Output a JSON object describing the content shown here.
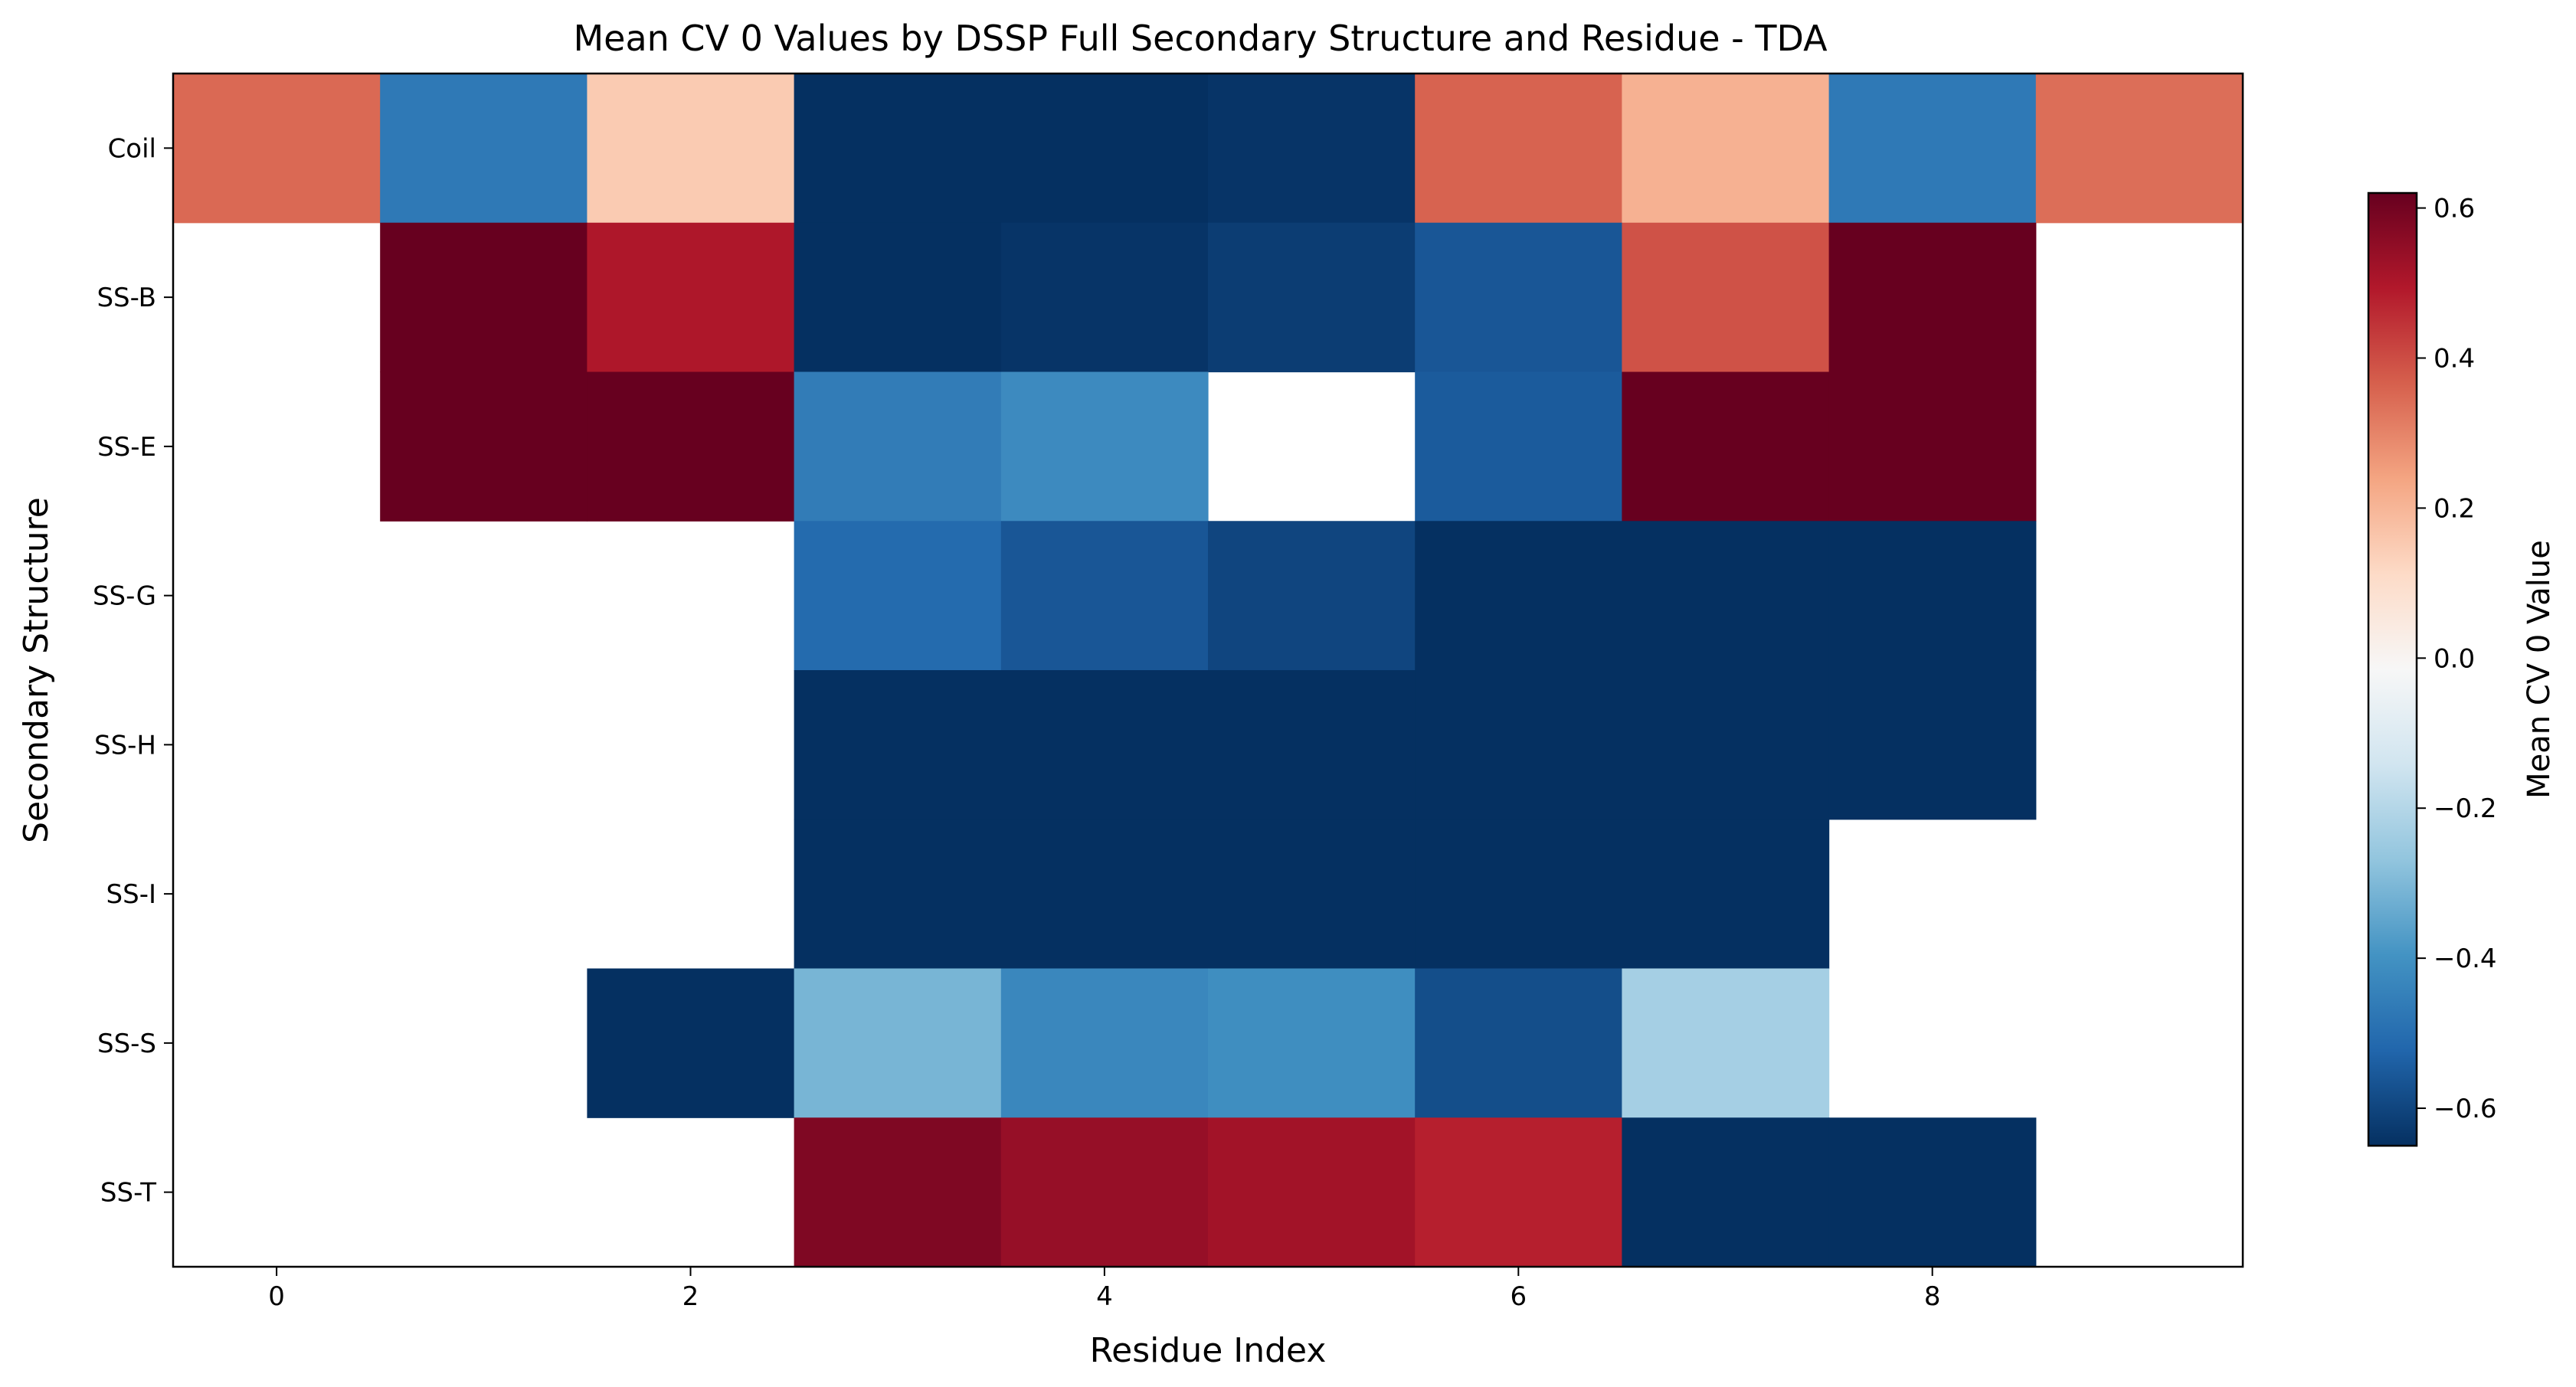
{
  "chart_data": {
    "type": "heatmap",
    "title": "Mean CV 0 Values by DSSP Full Secondary Structure and Residue - TDA",
    "xlabel": "Residue Index",
    "ylabel": "Secondary Structure",
    "colorbar_label": "Mean CV 0 Value",
    "colormap": "RdBu_r",
    "vmin": -0.65,
    "vmax": 0.62,
    "x": [
      0,
      1,
      2,
      3,
      4,
      5,
      6,
      7,
      8,
      9
    ],
    "x_tick_labels": [
      "0",
      "2",
      "4",
      "6",
      "8"
    ],
    "x_tick_values": [
      0,
      2,
      4,
      6,
      8
    ],
    "y_categories": [
      "Coil",
      "SS-B",
      "SS-E",
      "SS-G",
      "SS-H",
      "SS-I",
      "SS-S",
      "SS-T"
    ],
    "values": [
      [
        0.35,
        -0.47,
        0.15,
        -0.65,
        -0.65,
        -0.64,
        0.36,
        0.21,
        -0.47,
        0.34
      ],
      [
        null,
        0.62,
        0.5,
        -0.65,
        -0.64,
        -0.62,
        -0.56,
        0.39,
        0.62,
        null
      ],
      [
        null,
        0.62,
        0.62,
        -0.46,
        -0.42,
        null,
        -0.55,
        0.62,
        0.62,
        null
      ],
      [
        null,
        null,
        null,
        -0.51,
        -0.56,
        -0.6,
        -0.65,
        -0.65,
        -0.65,
        null
      ],
      [
        null,
        null,
        null,
        -0.65,
        -0.65,
        -0.65,
        -0.65,
        -0.65,
        -0.65,
        null
      ],
      [
        null,
        null,
        null,
        -0.65,
        -0.65,
        -0.65,
        -0.65,
        -0.65,
        null,
        null
      ],
      [
        null,
        null,
        -0.65,
        -0.31,
        -0.43,
        -0.41,
        -0.58,
        -0.23,
        null,
        null
      ],
      [
        null,
        null,
        null,
        0.58,
        0.54,
        0.52,
        0.48,
        -0.65,
        -0.65,
        null
      ]
    ],
    "colorbar_ticks": [
      -0.6,
      -0.4,
      -0.2,
      0.0,
      0.2,
      0.4,
      0.6
    ],
    "colorbar_tick_labels": [
      "−0.6",
      "−0.4",
      "−0.2",
      "0.0",
      "0.2",
      "0.4",
      "0.6"
    ]
  }
}
